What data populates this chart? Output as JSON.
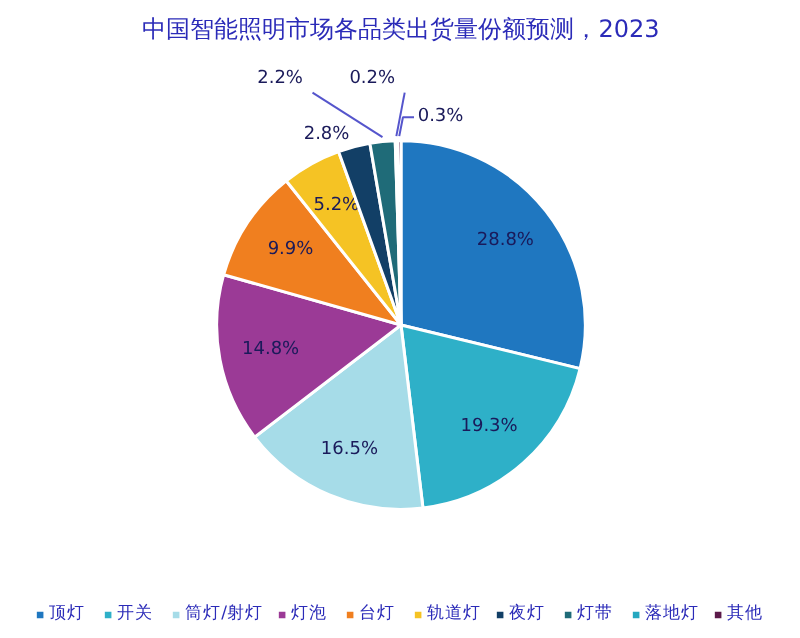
{
  "chart_data": {
    "type": "pie",
    "title": "中国智能照明市场各品类出货量份额预测，2023",
    "categories": [
      "顶灯",
      "开关",
      "筒灯/射灯",
      "灯泡",
      "台灯",
      "轨道灯",
      "夜灯",
      "灯带",
      "落地灯",
      "其他"
    ],
    "values": [
      28.8,
      19.3,
      16.5,
      14.8,
      9.9,
      5.2,
      2.8,
      2.2,
      0.2,
      0.3
    ],
    "colors": [
      "#1f77c0",
      "#2eb0c8",
      "#a6dce8",
      "#9b3a96",
      "#f07f1f",
      "#f5c324",
      "#123f66",
      "#1f6b78",
      "#25a8c0",
      "#5c1a4a"
    ],
    "value_labels": [
      "28.8%",
      "19.3%",
      "16.5%",
      "14.8%",
      "9.9%",
      "5.2%",
      "2.8%",
      "2.2%",
      "0.2%",
      "0.3%"
    ],
    "legend": "bottom"
  }
}
